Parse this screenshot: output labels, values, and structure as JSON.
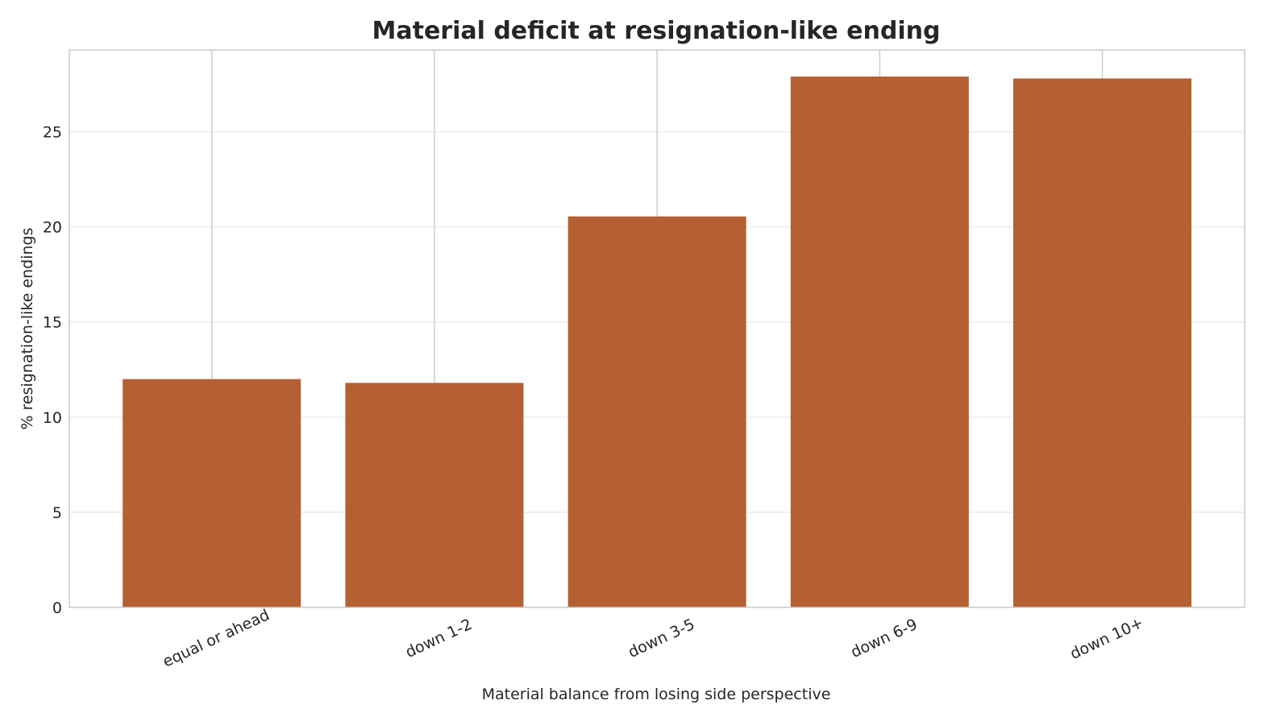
{
  "chart_data": {
    "type": "bar",
    "title": "Material deficit at resignation-like ending",
    "xlabel": "Material balance from losing side perspective",
    "ylabel": "% resignation-like endings",
    "categories": [
      "equal or ahead",
      "down 1-2",
      "down 3-5",
      "down 6-9",
      "down 10+"
    ],
    "values": [
      12.0,
      11.8,
      20.55,
      27.9,
      27.8
    ],
    "ylim": [
      0,
      29.3
    ],
    "yticks": [
      0,
      5,
      10,
      15,
      20,
      25
    ],
    "grid": true,
    "legend": "none",
    "colors": {
      "bar": "#b46033",
      "grid": "#cccccc",
      "grid_minor": "#ebebeb",
      "spine": "#cccccc",
      "text": "#262626"
    }
  }
}
